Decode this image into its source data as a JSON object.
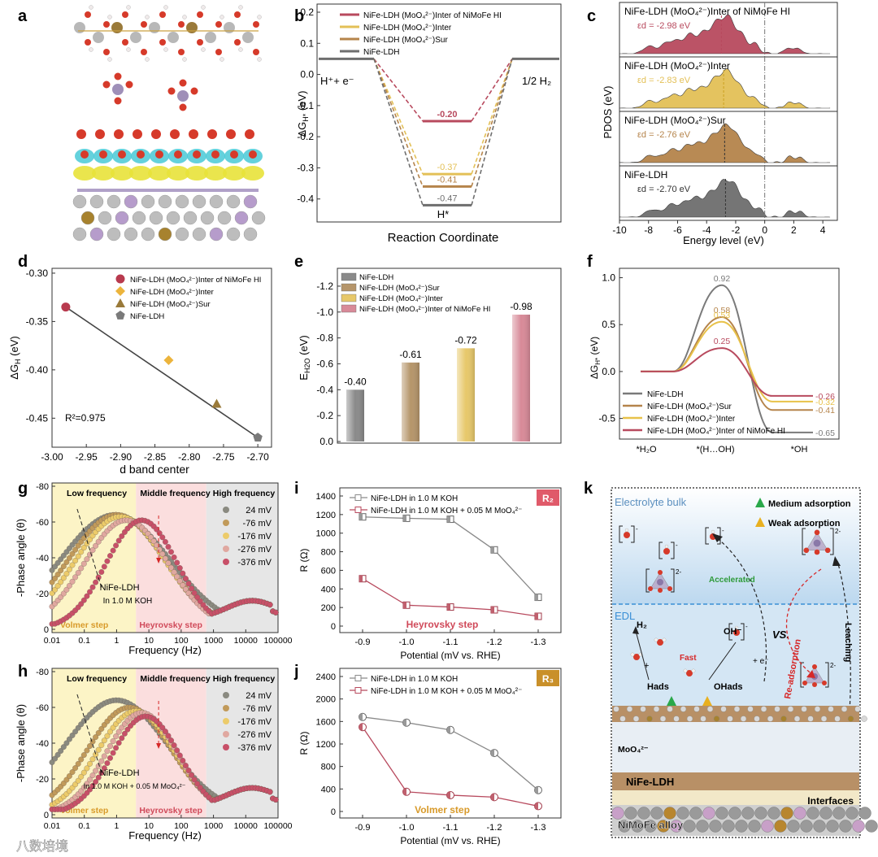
{
  "colors": {
    "ldh": "#6e6e6e",
    "sur": "#b5844b",
    "inter": "#e3c057",
    "hi": "#b84a5e",
    "cyan": "#49c9d6",
    "yellow": "#e8e23a",
    "blue": "#3a8fd6"
  },
  "panel_labels": [
    "a",
    "b",
    "c",
    "d",
    "e",
    "f",
    "g",
    "h",
    "i",
    "j",
    "k"
  ],
  "watermark": "八数培境",
  "chart_data": [
    {
      "id": "b",
      "type": "line",
      "xlabel": "Reaction Coordinate",
      "ylabel": "ΔG",
      "ylabel_sub": "H*",
      "ylabel_unit": "(eV)",
      "ylim": [
        -0.5,
        0.2
      ],
      "yticks": [
        "0.2",
        "0.1",
        "0.0",
        "-0.1",
        "-0.2",
        "-0.3",
        "-0.4",
        "-0.5"
      ],
      "ytick_values": [
        0.2,
        0.1,
        0.0,
        -0.1,
        -0.2,
        -0.3,
        -0.4,
        -0.5
      ],
      "initial_label": "H⁺+ e⁻",
      "final_label": "1/2 H₂",
      "intermediate_label": "H*",
      "initial": 0.05,
      "final": 0.05,
      "series": [
        {
          "name": "NiFe-LDH (MoO₄²⁻)Inter of NiMoFe HI",
          "value": -0.15,
          "label": "-0.20",
          "color": "hi"
        },
        {
          "name": "NiFe-LDH (MoO₄²⁻)Inter",
          "value": -0.32,
          "label": "-0.37",
          "color": "inter"
        },
        {
          "name": "NiFe-LDH (MoO₄²⁻)Sur",
          "value": -0.36,
          "label": "-0.41",
          "color": "sur"
        },
        {
          "name": "NiFe-LDH",
          "value": -0.42,
          "label": "-0.47",
          "color": "ldh"
        }
      ]
    },
    {
      "id": "c",
      "type": "area",
      "xlabel": "Energy level (eV)",
      "ylabel": "PDOS (eV)",
      "xlim": [
        -10,
        5
      ],
      "xticks": [
        -10,
        -8,
        -6,
        -4,
        -2,
        0,
        2,
        4
      ],
      "panels": [
        {
          "name": "NiFe-LDH (MoO₄²⁻)Inter of NiMoFe HI",
          "ed_label": "εd = -2.98 eV",
          "ed": -2.98,
          "color": "hi"
        },
        {
          "name": "NiFe-LDH (MoO₄²⁻)Inter",
          "ed_label": "εd = -2.83 eV",
          "ed": -2.83,
          "color": "inter"
        },
        {
          "name": "NiFe-LDH (MoO₄²⁻)Sur",
          "ed_label": "εd = -2.76 eV",
          "ed": -2.76,
          "color": "sur"
        },
        {
          "name": "NiFe-LDH",
          "ed_label": "εd = -2.70 eV",
          "ed": -2.7,
          "color": "ldh"
        }
      ]
    },
    {
      "id": "d",
      "type": "scatter",
      "xlabel": "d band center",
      "ylabel": "ΔG",
      "ylabel_sub": "H",
      "ylabel_unit": "(eV)",
      "xlim": [
        -3.0,
        -2.68
      ],
      "ylim": [
        -0.48,
        -0.295
      ],
      "xticks": [
        -3.0,
        -2.95,
        -2.9,
        -2.85,
        -2.8,
        -2.75,
        -2.7
      ],
      "xtick_labels": [
        "-3.00",
        "-2.95",
        "-2.90",
        "-2.85",
        "-2.80",
        "-2.75",
        "-2.70"
      ],
      "yticks": [
        -0.3,
        -0.35,
        -0.4,
        -0.45
      ],
      "ytick_labels": [
        "-0.30",
        "-0.35",
        "-0.40",
        "-0.45"
      ],
      "annotation": "R²=0.975",
      "fit": [
        [
          -2.98,
          -0.335
        ],
        [
          -2.7,
          -0.47
        ]
      ],
      "points": [
        {
          "name": "NiFe-LDH (MoO₄²⁻)Inter of NiMoFe HI",
          "x": -2.98,
          "y": -0.335,
          "marker": "circle",
          "color": "hi"
        },
        {
          "name": "NiFe-LDH (MoO₄²⁻)Inter",
          "x": -2.83,
          "y": -0.39,
          "marker": "diamond",
          "color": "inter"
        },
        {
          "name": "NiFe-LDH (MoO₄²⁻)Sur",
          "x": -2.76,
          "y": -0.435,
          "marker": "triangle",
          "color": "sur"
        },
        {
          "name": "NiFe-LDH",
          "x": -2.7,
          "y": -0.47,
          "marker": "pentagon",
          "color": "ldh"
        }
      ]
    },
    {
      "id": "e",
      "type": "bar",
      "ylabel": "E",
      "ylabel_sub": "H2O",
      "ylabel_unit": "(eV)",
      "ylim": [
        0,
        -1.3
      ],
      "yticks": [
        -1.2,
        -1.0,
        -0.8,
        -0.6,
        -0.4,
        -0.2,
        0.0
      ],
      "ytick_labels": [
        "-1.2",
        "-1.0",
        "-0.8",
        "-0.6",
        "-0.4",
        "-0.2",
        "0.0"
      ],
      "categories": [
        "NiFe-LDH",
        "NiFe-LDH (MoO₄²⁻)Sur",
        "NiFe-LDH (MoO₄²⁻)Inter",
        "NiFe-LDH (MoO₄²⁻)Inter of NiMoFe HI"
      ],
      "values": [
        -0.4,
        -0.61,
        -0.72,
        -0.98
      ],
      "value_labels": [
        "-0.40",
        "-0.61",
        "-0.72",
        "-0.98"
      ],
      "colors": [
        "ldh",
        "sur",
        "inter",
        "hi"
      ]
    },
    {
      "id": "f",
      "type": "line",
      "ylabel": "ΔG",
      "ylabel_sub": "H*",
      "ylabel_unit": "(eV)",
      "ylim": [
        -0.72,
        1.1
      ],
      "yticks": [
        -0.5,
        0.0,
        0.5,
        1.0
      ],
      "ytick_labels": [
        "-0.5",
        "0.0",
        "0.5",
        "1.0"
      ],
      "xcategories": [
        "*H₂O",
        "*(H…OH)",
        "*OH"
      ],
      "series": [
        {
          "name": "NiFe-LDH",
          "peak": 0.92,
          "final": -0.65,
          "peak_label": "0.92",
          "final_label": "-0.65",
          "color": "ldh"
        },
        {
          "name": "NiFe-LDH (MoO₄²⁻)Sur",
          "peak": 0.58,
          "final": -0.41,
          "peak_label": "0.58",
          "final_label": "-0.41",
          "color": "sur"
        },
        {
          "name": "NiFe-LDH (MoO₄²⁻)Inter",
          "peak": 0.53,
          "final": -0.32,
          "peak_label": "0.53",
          "final_label": "-0.32",
          "color": "inter"
        },
        {
          "name": "NiFe-LDH (MoO₄²⁻)Inter of NiMoFe HI",
          "peak": 0.25,
          "final": -0.26,
          "peak_label": "0.25",
          "final_label": "-0.26",
          "color": "hi"
        }
      ]
    },
    {
      "id": "g",
      "type": "scatter",
      "xlabel": "Frequency (Hz)",
      "ylabel": "-Phase angle (θ)",
      "xlog": true,
      "xlim": [
        0.01,
        100000
      ],
      "xtick_labels": [
        "0.01",
        "0.1",
        "1",
        "10",
        "100",
        "1000",
        "10000",
        "100000"
      ],
      "ylim": [
        -80,
        0
      ],
      "yticks": [
        "-80",
        "-60",
        "-40",
        "-20",
        "0"
      ],
      "regions": [
        "Low frequency",
        "Middle frequency",
        "High frequency"
      ],
      "steps": [
        "Volmer step",
        "Heyrovsky step"
      ],
      "annotation": [
        "NiFe-LDH",
        "In 1.0 M KOH"
      ],
      "series": [
        {
          "name": "24 mV",
          "color": "#8a8a80",
          "peak_x": 0.9,
          "peak_y": 64,
          "width": 1.7,
          "tail": 6
        },
        {
          "name": "-76 mV",
          "color": "#c19a5a",
          "peak_x": 1.0,
          "peak_y": 64,
          "width": 1.5,
          "tail": 6
        },
        {
          "name": "-176 mV",
          "color": "#eccb6a",
          "peak_x": 1.3,
          "peak_y": 63,
          "width": 1.4,
          "tail": 6
        },
        {
          "name": "-276 mV",
          "color": "#e0a8a0",
          "peak_x": 2.0,
          "peak_y": 61,
          "width": 1.3,
          "tail": 6
        },
        {
          "name": "-376 mV",
          "color": "#c85068",
          "peak_x": 6.0,
          "peak_y": 61,
          "width": 1.1,
          "tail": 6
        }
      ]
    },
    {
      "id": "h",
      "type": "scatter",
      "xlabel": "Frequency (Hz)",
      "ylabel": "-Phase angle (θ)",
      "xlog": true,
      "xlim": [
        0.01,
        100000
      ],
      "xtick_labels": [
        "0.01",
        "0.1",
        "1",
        "10",
        "100",
        "1000",
        "10000",
        "100000"
      ],
      "ylim": [
        -80,
        0
      ],
      "yticks": [
        "-80",
        "-60",
        "-40",
        "-20",
        "0"
      ],
      "regions": [
        "Low frequency",
        "Middle frequency",
        "High frequency"
      ],
      "steps": [
        "Volmer step",
        "Heyrovsky step"
      ],
      "annotation": [
        "NiFe-LDH",
        "In 1.0 M KOH + 0.05 M MoO₄²⁻"
      ],
      "series": [
        {
          "name": "24 mV",
          "color": "#8a8a80",
          "peak_x": 1.0,
          "peak_y": 64,
          "width": 1.6,
          "tail": 5
        },
        {
          "name": "-76 mV",
          "color": "#c19a5a",
          "peak_x": 2.5,
          "peak_y": 60,
          "width": 1.3,
          "tail": 5
        },
        {
          "name": "-176 mV",
          "color": "#eccb6a",
          "peak_x": 4.0,
          "peak_y": 58,
          "width": 1.2,
          "tail": 5
        },
        {
          "name": "-276 mV",
          "color": "#e0a8a0",
          "peak_x": 6.0,
          "peak_y": 57,
          "width": 1.1,
          "tail": 5
        },
        {
          "name": "-376 mV",
          "color": "#c85068",
          "peak_x": 8.0,
          "peak_y": 55,
          "width": 1.05,
          "tail": 5
        }
      ]
    },
    {
      "id": "i",
      "type": "line",
      "xlabel": "Potential (mV vs. RHE)",
      "ylabel": "R (Ω)",
      "badge": "R₂",
      "xcategories": [
        "-0.9",
        "-1.0",
        "-1.1",
        "-1.2",
        "-1.3"
      ],
      "ylim": [
        0,
        1400
      ],
      "yticks": [
        0,
        200,
        400,
        600,
        800,
        1000,
        1200,
        1400
      ],
      "step_label": "Heyrovsky step",
      "series": [
        {
          "name": "NiFe-LDH in 1.0 M KOH",
          "values": [
            1175,
            1160,
            1150,
            820,
            310
          ],
          "color": "#8a8a8a"
        },
        {
          "name": "NiFe-LDH in 1.0 M KOH + 0.05 M MoO₄²⁻",
          "values": [
            510,
            225,
            205,
            175,
            105
          ],
          "color": "#b84a5e"
        }
      ]
    },
    {
      "id": "j",
      "type": "line",
      "xlabel": "Potential (mV vs. RHE)",
      "ylabel": "R (Ω)",
      "badge": "R₃",
      "xcategories": [
        "-0.9",
        "-1.0",
        "-1.1",
        "-1.2",
        "-1.3"
      ],
      "ylim": [
        0,
        2400
      ],
      "yticks": [
        0,
        400,
        800,
        1200,
        1600,
        2000,
        2400
      ],
      "step_label": "Volmer step",
      "series": [
        {
          "name": "NiFe-LDH in 1.0 M KOH",
          "values": [
            1680,
            1580,
            1450,
            1040,
            380
          ],
          "color": "#8a8a8a"
        },
        {
          "name": "NiFe-LDH in 1.0 M KOH + 0.05 M MoO₄²⁻",
          "values": [
            1500,
            350,
            290,
            255,
            95
          ],
          "color": "#b84a5e"
        }
      ]
    }
  ],
  "diagram_k": {
    "electrolyte_bulk": "Electrolyte bulk",
    "legend_medium": "Medium adsorption",
    "legend_weak": "Weak adsorption",
    "edl": "EDL",
    "accelerated": "Accelerated",
    "vs": "VS.",
    "re_adsorption": "Re-adsorption",
    "leaching": "Leaching",
    "h2": "H₂",
    "fast": "Fast",
    "hads": "Hads",
    "ohads": "OHads",
    "oh_minus": "OH⁻",
    "e_minus": "+ e⁻",
    "plus": "+",
    "moo4": "MoO₄²⁻",
    "nife_ldh": "NiFe-LDH",
    "interfaces": "Interfaces",
    "alloy": "NiMoFe alloy",
    "charge": "2-",
    "neg": "-"
  }
}
